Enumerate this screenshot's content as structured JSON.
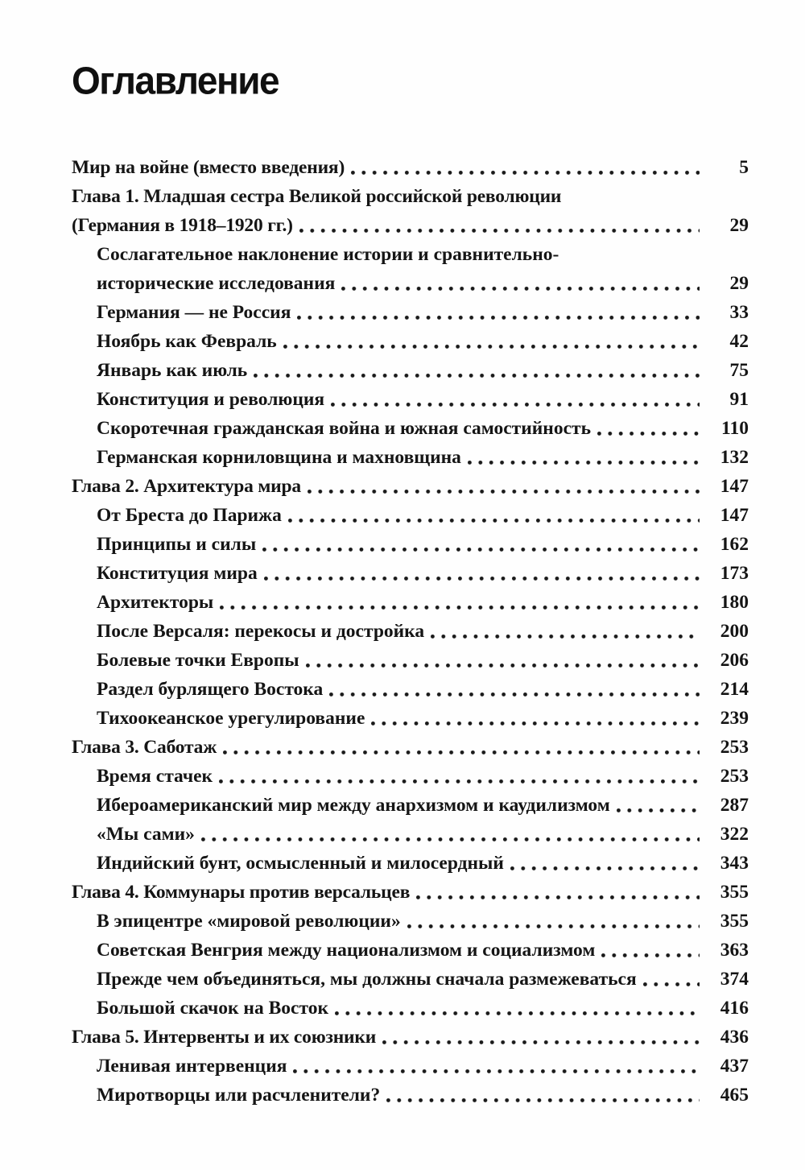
{
  "page": {
    "title": "Оглавление",
    "background_color": "#fefefe",
    "text_color": "#151515"
  },
  "toc": {
    "entries": [
      {
        "text": "Мир на войне (вместо введения)",
        "page": "5",
        "level": 0,
        "chapter": true
      },
      {
        "text": "Глава 1. Младшая сестра Великой российской революции",
        "page": null,
        "level": 0,
        "chapter": true
      },
      {
        "text": "(Германия в 1918–1920 гг.)",
        "page": "29",
        "level": 0,
        "chapter": true
      },
      {
        "text": "Сослагательное наклонение истории и сравнительно-",
        "page": null,
        "level": 1,
        "chapter": false
      },
      {
        "text": "исторические исследования",
        "page": "29",
        "level": 1,
        "chapter": false
      },
      {
        "text": "Германия — не Россия",
        "page": "33",
        "level": 1,
        "chapter": false
      },
      {
        "text": "Ноябрь как Февраль",
        "page": "42",
        "level": 1,
        "chapter": false
      },
      {
        "text": "Январь как июль",
        "page": "75",
        "level": 1,
        "chapter": false
      },
      {
        "text": "Конституция и революция",
        "page": "91",
        "level": 1,
        "chapter": false
      },
      {
        "text": "Скоротечная гражданская война и южная самостийность",
        "page": "110",
        "level": 1,
        "chapter": false
      },
      {
        "text": "Германская корниловщина и махновщина",
        "page": "132",
        "level": 1,
        "chapter": false
      },
      {
        "text": "Глава 2. Архитектура мира",
        "page": "147",
        "level": 0,
        "chapter": true
      },
      {
        "text": "От Бреста до Парижа",
        "page": "147",
        "level": 1,
        "chapter": false
      },
      {
        "text": "Принципы и силы",
        "page": "162",
        "level": 1,
        "chapter": false
      },
      {
        "text": "Конституция мира",
        "page": "173",
        "level": 1,
        "chapter": false
      },
      {
        "text": "Архитекторы",
        "page": "180",
        "level": 1,
        "chapter": false
      },
      {
        "text": "После Версаля: перекосы и достройка",
        "page": "200",
        "level": 1,
        "chapter": false
      },
      {
        "text": "Болевые точки Европы",
        "page": "206",
        "level": 1,
        "chapter": false
      },
      {
        "text": "Раздел бурлящего Востока",
        "page": "214",
        "level": 1,
        "chapter": false
      },
      {
        "text": "Тихоокеанское урегулирование",
        "page": "239",
        "level": 1,
        "chapter": false
      },
      {
        "text": "Глава 3. Саботаж",
        "page": "253",
        "level": 0,
        "chapter": true
      },
      {
        "text": "Время стачек",
        "page": "253",
        "level": 1,
        "chapter": false
      },
      {
        "text": "Ибероамериканский мир между анархизмом и каудилизмом",
        "page": "287",
        "level": 1,
        "chapter": false
      },
      {
        "text": "«Мы сами»",
        "page": "322",
        "level": 1,
        "chapter": false
      },
      {
        "text": "Индийский бунт, осмысленный и милосердный",
        "page": "343",
        "level": 1,
        "chapter": false
      },
      {
        "text": "Глава 4. Коммунары против версальцев",
        "page": "355",
        "level": 0,
        "chapter": true
      },
      {
        "text": "В эпицентре «мировой революции»",
        "page": "355",
        "level": 1,
        "chapter": false
      },
      {
        "text": "Советская Венгрия между национализмом и социализмом",
        "page": "363",
        "level": 1,
        "chapter": false
      },
      {
        "text": "Прежде чем объединяться, мы должны сначала размежеваться",
        "page": "374",
        "level": 1,
        "chapter": false
      },
      {
        "text": "Большой скачок на Восток",
        "page": "416",
        "level": 1,
        "chapter": false
      },
      {
        "text": "Глава 5. Интервенты и их союзники",
        "page": "436",
        "level": 0,
        "chapter": true
      },
      {
        "text": "Ленивая интервенция",
        "page": "437",
        "level": 1,
        "chapter": false
      },
      {
        "text": "Миротворцы или расчленители?",
        "page": "465",
        "level": 1,
        "chapter": false
      }
    ]
  }
}
